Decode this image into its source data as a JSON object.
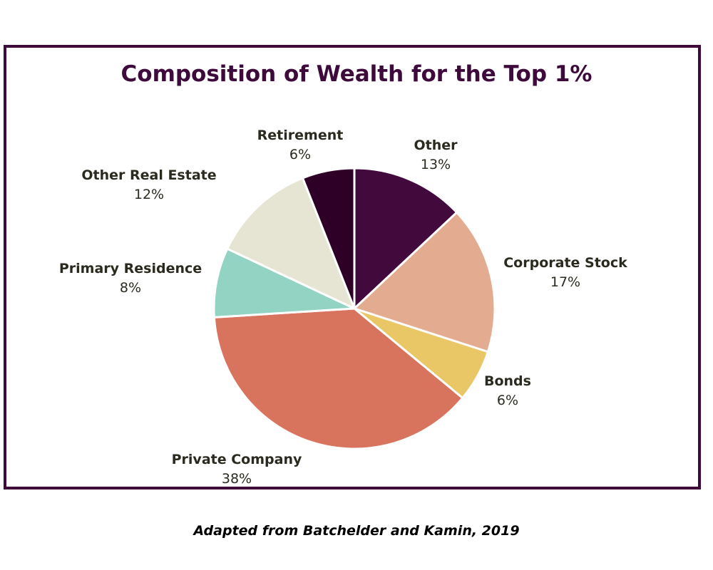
{
  "chart_data": {
    "type": "pie",
    "title": "Composition of Wealth for the Top 1%",
    "slices": [
      {
        "label": "Other",
        "value": 13,
        "pct_label": "13%",
        "color": "#420a3c"
      },
      {
        "label": "Corporate Stock",
        "value": 17,
        "pct_label": "17%",
        "color": "#e3ab8f"
      },
      {
        "label": "Bonds",
        "value": 6,
        "pct_label": "6%",
        "color": "#e9c666"
      },
      {
        "label": "Private Company",
        "value": 38,
        "pct_label": "38%",
        "color": "#d8735e"
      },
      {
        "label": "Primary Residence",
        "value": 8,
        "pct_label": "8%",
        "color": "#93d3c3"
      },
      {
        "label": "Other Real Estate",
        "value": 12,
        "pct_label": "12%",
        "color": "#e6e4d2"
      },
      {
        "label": "Retirement",
        "value": 6,
        "pct_label": "6%",
        "color": "#2e0028"
      }
    ]
  },
  "source": "Adapted from Batchelder and Kamin, 2019"
}
